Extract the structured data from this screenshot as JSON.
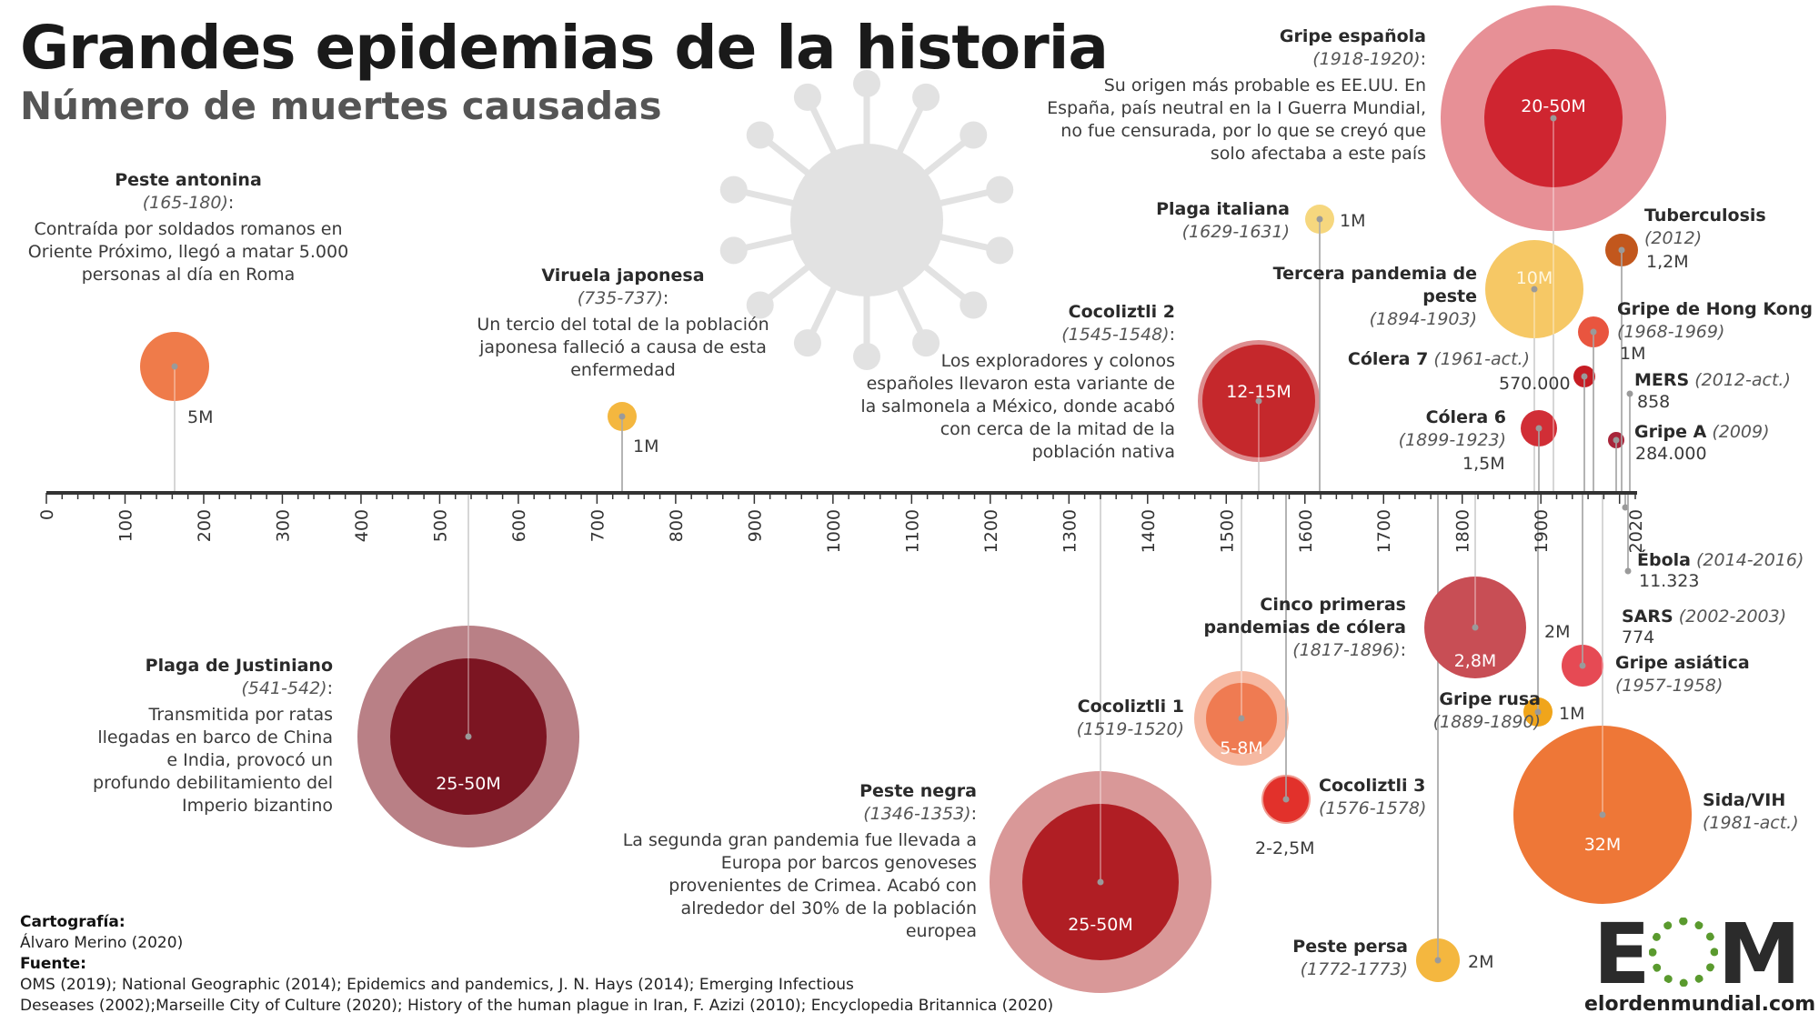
{
  "title": "Grandes epidemias de la historia",
  "subtitle": "Número de muertes causadas",
  "credits": {
    "carto_label": "Cartografía:",
    "carto": "Álvaro Merino (2020)",
    "source_label": "Fuente:",
    "source_line1": "OMS (2019); National Geographic (2014); Epidemics and pandemics, J. N. Hays (2014); Emerging Infectious",
    "source_line2": "Deseases (2002);Marseille City of Culture (2020); History of the human plague in Iran, F. Azizi (2010); Encyclopedia Britannica (2020)"
  },
  "logo": {
    "mark_left": "E",
    "mark_right": "M",
    "url": "elordenmundial.com"
  },
  "chart_data": {
    "type": "scatter",
    "encoding": "bubble timeline; bubble area proportional to deaths; outer ring = upper bound of range",
    "x_axis": {
      "min": 0,
      "max": 2020,
      "ticks": [
        0,
        100,
        200,
        300,
        400,
        500,
        600,
        700,
        800,
        900,
        1000,
        1100,
        1200,
        1300,
        1400,
        1500,
        1600,
        1700,
        1800,
        1900,
        2020
      ]
    },
    "grid": false,
    "legend": "none",
    "epidemics": [
      {
        "id": "peste-antonina",
        "name": "Peste antonina",
        "dates": "(165-180)",
        "year": 165,
        "text": "Contraída por soldados romanos en Oriente Próximo, llegó a matar 5.000 personas al día en Roma",
        "label": "5M",
        "deaths_min": 5000000,
        "deaths_max": 5000000,
        "color": "#ef7b4a"
      },
      {
        "id": "viruela-japonesa",
        "name": "Viruela japonesa",
        "dates": "(735-737)",
        "year": 735,
        "text": "Un tercio del total de la población japonesa falleció a causa de esta enfermedad",
        "label": "1M",
        "deaths_min": 1000000,
        "deaths_max": 1000000,
        "color": "#f4b73f"
      },
      {
        "id": "plaga-justiniano",
        "name": "Plaga de Justiniano",
        "dates": "(541-542)",
        "year": 541,
        "text": "Transmitida por ratas llegadas en barco de China e India, provocó un profundo debilitamiento del Imperio bizantino",
        "label": "25-50M",
        "deaths_min": 25000000,
        "deaths_max": 50000000,
        "color": "#7c1522",
        "ring": "#b98086"
      },
      {
        "id": "peste-negra",
        "name": "Peste negra",
        "dates": "(1346-1353)",
        "year": 1346,
        "text": "La segunda gran pandemia fue llevada a Europa por barcos genoveses provenientes de Crimea. Acabó con alrededor del 30% de la población europea",
        "label": "25-50M",
        "deaths_min": 25000000,
        "deaths_max": 50000000,
        "color": "#b01e24",
        "ring": "#d99898"
      },
      {
        "id": "cocoliztli-1",
        "name": "Cocoliztli 1",
        "dates": "(1519-1520)",
        "year": 1519,
        "text": "",
        "label": "5-8M",
        "deaths_min": 5000000,
        "deaths_max": 8000000,
        "color": "#ef7b52",
        "ring": "#f6b9a2"
      },
      {
        "id": "cocoliztli-2",
        "name": "Cocoliztli 2",
        "dates": "(1545-1548)",
        "year": 1545,
        "text": "Los exploradores y colonos españoles llevaron esta variante de la salmonela a México, donde acabó con cerca de la mitad de la población nativa",
        "label": "12-15M",
        "deaths_min": 12000000,
        "deaths_max": 15000000,
        "color": "#c5282c",
        "ring": "#dd8d8f"
      },
      {
        "id": "cocoliztli-3",
        "name": "Cocoliztli 3",
        "dates": "(1576-1578)",
        "year": 1576,
        "text": "",
        "label": "2-2,5M",
        "deaths_min": 2000000,
        "deaths_max": 2500000,
        "color": "#e2312b",
        "ring": "#f09a90"
      },
      {
        "id": "plaga-italiana",
        "name": "Plaga italiana",
        "dates": "(1629-1631)",
        "year": 1629,
        "text": "",
        "label": "1M",
        "deaths_min": 1000000,
        "deaths_max": 1000000,
        "color": "#f6d77e"
      },
      {
        "id": "peste-persa",
        "name": "Peste persa",
        "dates": "(1772-1773)",
        "year": 1772,
        "text": "",
        "label": "2M",
        "deaths_min": 2000000,
        "deaths_max": 2000000,
        "color": "#f4b73f"
      },
      {
        "id": "cinco-colera",
        "name": "Cinco primeras pandemias de cólera",
        "dates": "(1817-1896)",
        "year": 1817,
        "text": "",
        "label": "2,8M",
        "deaths_min": 2800000,
        "deaths_max": 2800000,
        "color": "#c84e55"
      },
      {
        "id": "tercera-peste",
        "name": "Tercera pandemia de peste",
        "dates": "(1894-1903)",
        "year": 1894,
        "text": "",
        "label": "10M",
        "deaths_min": 10000000,
        "deaths_max": 10000000,
        "color": "#f6c865"
      },
      {
        "id": "gripe-rusa",
        "name": "Gripe rusa",
        "dates": "(1889-1890)",
        "year": 1889,
        "text": "",
        "label": "1M",
        "deaths_min": 1000000,
        "deaths_max": 1000000,
        "color": "#f0a51b"
      },
      {
        "id": "colera-6",
        "name": "Cólera 6",
        "dates": "(1899-1923)",
        "year": 1899,
        "text": "",
        "label": "1,5M",
        "deaths_min": 1500000,
        "deaths_max": 1500000,
        "color": "#d12e36"
      },
      {
        "id": "gripe-espanola",
        "name": "Gripe española",
        "dates": "(1918-1920)",
        "year": 1918,
        "text": "Su origen más probable es EE.UU. En España, país neutral en la I Guerra Mundial, no fue censurada, por lo que se creyó que solo afectaba a este país",
        "label": "20-50M",
        "deaths_min": 20000000,
        "deaths_max": 50000000,
        "color": "#cf2530",
        "ring": "#e79096"
      },
      {
        "id": "gripe-asiatica",
        "name": "Gripe asiática",
        "dates": "(1957-1958)",
        "year": 1957,
        "text": "",
        "label": "2M",
        "deaths_min": 2000000,
        "deaths_max": 2000000,
        "color": "#e64a54"
      },
      {
        "id": "colera-7",
        "name": "Cólera 7",
        "dates": "(1961-act.)",
        "year": 1961,
        "text": "",
        "label": "570.000",
        "deaths_min": 570000,
        "deaths_max": 570000,
        "color": "#c61d24"
      },
      {
        "id": "gripe-hong-kong",
        "name": "Gripe de Hong Kong",
        "dates": "(1968-1969)",
        "year": 1968,
        "text": "",
        "label": "1M",
        "deaths_min": 1000000,
        "deaths_max": 1000000,
        "color": "#e9553f"
      },
      {
        "id": "sida",
        "name": "Sida/VIH",
        "dates": "(1981-act.)",
        "year": 1981,
        "text": "",
        "label": "32M",
        "deaths_min": 32000000,
        "deaths_max": 32000000,
        "color": "#ee7737"
      },
      {
        "id": "sars",
        "name": "SARS",
        "dates": "(2002-2003)",
        "year": 2002,
        "text": "",
        "label": "774",
        "deaths_min": 774,
        "deaths_max": 774,
        "color": "#c0392b"
      },
      {
        "id": "gripe-a",
        "name": "Gripe A",
        "dates": "(2009)",
        "year": 2009,
        "text": "",
        "label": "284.000",
        "deaths_min": 284000,
        "deaths_max": 284000,
        "color": "#a8253a"
      },
      {
        "id": "tuberculosis",
        "name": "Tuberculosis",
        "dates": "(2012)",
        "year": 2012,
        "text": "",
        "label": "1,2M",
        "deaths_min": 1200000,
        "deaths_max": 1200000,
        "color": "#c2571d"
      },
      {
        "id": "mers",
        "name": "MERS",
        "dates": "(2012-act.)",
        "year": 2012,
        "text": "",
        "label": "858",
        "deaths_min": 858,
        "deaths_max": 858,
        "color": "#c0392b"
      },
      {
        "id": "ebola",
        "name": "Ébola",
        "dates": "(2014-2016)",
        "year": 2014,
        "text": "",
        "label": "11.323",
        "deaths_min": 11323,
        "deaths_max": 11323,
        "color": "#c81e2a"
      }
    ]
  }
}
